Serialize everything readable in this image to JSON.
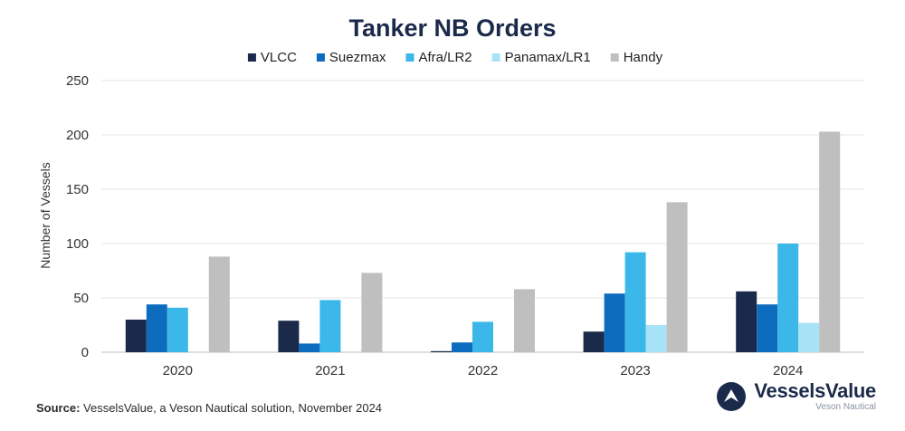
{
  "chart_data": {
    "type": "bar",
    "title": "Tanker NB Orders",
    "ylabel": "Number of Vessels",
    "xlabel": "",
    "categories": [
      "2020",
      "2021",
      "2022",
      "2023",
      "2024"
    ],
    "ylim": [
      0,
      250
    ],
    "yticks": [
      0,
      50,
      100,
      150,
      200,
      250
    ],
    "grid": true,
    "legend_position": "top-center",
    "series": [
      {
        "name": "VLCC",
        "color": "#1b2a4a",
        "values": [
          30,
          29,
          1,
          19,
          56
        ]
      },
      {
        "name": "Suezmax",
        "color": "#0e6cbf",
        "values": [
          44,
          8,
          9,
          54,
          44
        ]
      },
      {
        "name": "Afra/LR2",
        "color": "#3bb7ea",
        "values": [
          41,
          48,
          28,
          92,
          100
        ]
      },
      {
        "name": "Panamax/LR1",
        "color": "#a8e2f6",
        "values": [
          0,
          0,
          0,
          25,
          27
        ]
      },
      {
        "name": "Handy",
        "color": "#bfbfbf",
        "values": [
          88,
          73,
          58,
          138,
          203
        ]
      }
    ]
  },
  "footer": {
    "source_label": "Source:",
    "source_text": " VesselsValue, a Veson Nautical solution, November 2024"
  },
  "brand": {
    "name": "VesselsValue",
    "sub": "Veson Nautical"
  }
}
